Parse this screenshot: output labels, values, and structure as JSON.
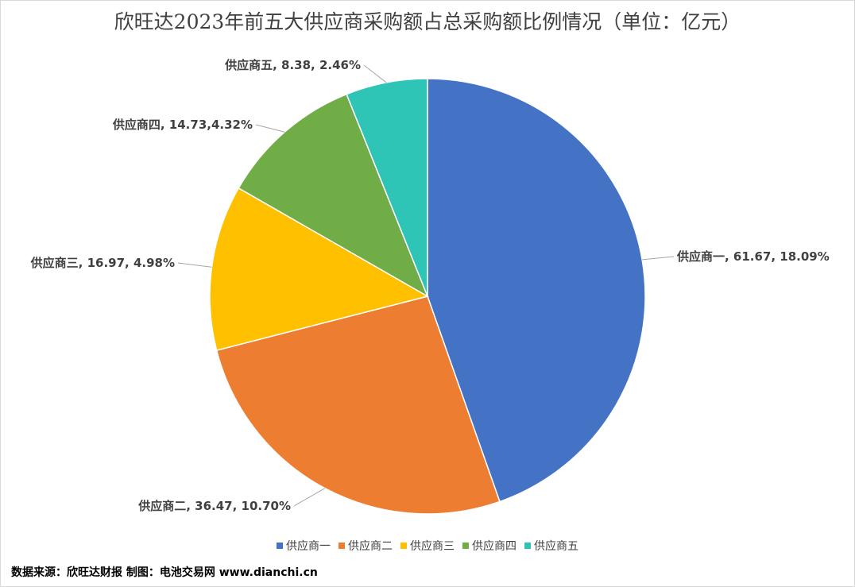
{
  "title": "欣旺达2023年前五大供应商采购额占总采购额比例情况（单位：亿元）",
  "source": "数据来源：欣旺达财报  制图：电池交易网 www.dianchi.cn",
  "chart_data": {
    "type": "pie",
    "title": "欣旺达2023年前五大供应商采购额占总采购额比例情况（单位：亿元）",
    "categories": [
      "供应商一",
      "供应商二",
      "供应商三",
      "供应商四",
      "供应商五"
    ],
    "values": [
      61.67,
      36.47,
      16.97,
      14.73,
      8.38
    ],
    "percents": [
      "18.09%",
      "10.70%",
      "4.98%",
      "4.32%",
      "2.46%"
    ],
    "data_labels": [
      "供应商一, 61.67, 18.09%",
      "供应商二, 36.47, 10.70%",
      "供应商三, 16.97, 4.98%",
      "供应商四, 14.73,4.32%",
      "供应商五, 8.38, 2.46%"
    ],
    "colors": [
      "#4472C4",
      "#ED7D31",
      "#FFC000",
      "#70AD47",
      "#2EC4B6"
    ],
    "legend_position": "bottom"
  }
}
